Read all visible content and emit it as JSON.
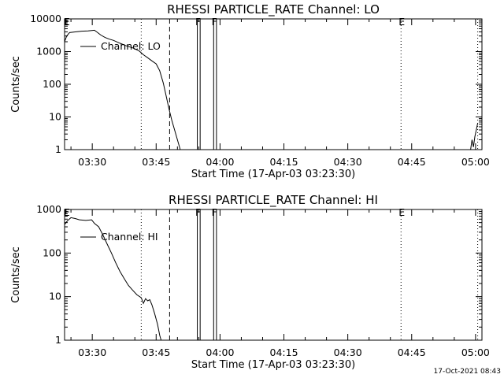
{
  "timestamp": "17-Oct-2021 08:43",
  "chart_data": [
    {
      "type": "line",
      "title": "RHESSI PARTICLE_RATE Channel: LO",
      "xlabel": "Start Time (17-Apr-03 03:23:30)",
      "ylabel": "Counts/sec",
      "yscale": "log",
      "ylim": [
        1,
        10000
      ],
      "xlim": [
        "03:23:30",
        "05:01:30"
      ],
      "x_ticks": [
        "03:30",
        "03:45",
        "04:00",
        "04:15",
        "04:30",
        "04:45",
        "05:00"
      ],
      "y_ticks": [
        "1",
        "10",
        "100",
        "1000",
        "10000"
      ],
      "legend": {
        "label": "Channel: LO",
        "position": "top-left"
      },
      "markers": [
        {
          "time": "03:23:50",
          "label": "E",
          "style": "tick"
        },
        {
          "time": "03:41:30",
          "label": "",
          "style": "dotted"
        },
        {
          "time": "03:48:10",
          "label": "",
          "style": "dashed"
        },
        {
          "time": "03:54:40",
          "label": "F",
          "style": "solid"
        },
        {
          "time": "03:55:20",
          "label": "",
          "style": "solid"
        },
        {
          "time": "03:58:30",
          "label": "F",
          "style": "solid"
        },
        {
          "time": "03:59:10",
          "label": "",
          "style": "solid"
        },
        {
          "time": "04:42:30",
          "label": "E",
          "style": "dotted"
        },
        {
          "time": "05:00:30",
          "label": "",
          "style": "dotted"
        }
      ],
      "series": [
        {
          "segments": [
            [
              [
                "03:23:30",
                2000
              ],
              [
                "03:24:00",
                3000
              ],
              [
                "03:24:40",
                3800
              ],
              [
                "03:26:00",
                4000
              ],
              [
                "03:27:30",
                4200
              ],
              [
                "03:29:00",
                4300
              ],
              [
                "03:30:30",
                4500
              ],
              [
                "03:31:10",
                3900
              ],
              [
                "03:32:00",
                3200
              ],
              [
                "03:33:00",
                2700
              ],
              [
                "03:34:00",
                2400
              ],
              [
                "03:35:00",
                2200
              ],
              [
                "03:36:30",
                1800
              ],
              [
                "03:38:00",
                1500
              ],
              [
                "03:39:30",
                1300
              ],
              [
                "03:41:00",
                1050
              ],
              [
                "03:42:00",
                800
              ],
              [
                "03:43:00",
                650
              ],
              [
                "03:44:00",
                520
              ],
              [
                "03:45:00",
                420
              ],
              [
                "03:45:50",
                260
              ],
              [
                "03:46:40",
                110
              ],
              [
                "03:47:20",
                45
              ],
              [
                "03:48:00",
                18
              ],
              [
                "03:48:40",
                8
              ],
              [
                "03:49:20",
                4
              ],
              [
                "03:50:00",
                2
              ],
              [
                "03:50:40",
                1
              ]
            ],
            [
              [
                "04:58:50",
                1
              ],
              [
                "04:59:10",
                2
              ],
              [
                "04:59:30",
                1.2
              ],
              [
                "04:59:50",
                2.5
              ],
              [
                "05:00:10",
                4
              ],
              [
                "05:00:30",
                6.5
              ]
            ]
          ]
        }
      ]
    },
    {
      "type": "line",
      "title": "RHESSI PARTICLE_RATE Channel: HI",
      "xlabel": "Start Time (17-Apr-03 03:23:30)",
      "ylabel": "Counts/sec",
      "yscale": "log",
      "ylim": [
        1,
        1000
      ],
      "xlim": [
        "03:23:30",
        "05:01:30"
      ],
      "x_ticks": [
        "03:30",
        "03:45",
        "04:00",
        "04:15",
        "04:30",
        "04:45",
        "05:00"
      ],
      "y_ticks": [
        "1",
        "10",
        "100",
        "1000"
      ],
      "legend": {
        "label": "Channel: HI",
        "position": "top-left"
      },
      "markers": [
        {
          "time": "03:23:50",
          "label": "E",
          "style": "tick"
        },
        {
          "time": "03:41:30",
          "label": "",
          "style": "dotted"
        },
        {
          "time": "03:48:10",
          "label": "",
          "style": "dashed"
        },
        {
          "time": "03:54:40",
          "label": "F",
          "style": "solid"
        },
        {
          "time": "03:55:20",
          "label": "",
          "style": "solid"
        },
        {
          "time": "03:58:30",
          "label": "F",
          "style": "solid"
        },
        {
          "time": "03:59:10",
          "label": "",
          "style": "solid"
        },
        {
          "time": "04:42:30",
          "label": "E",
          "style": "dotted"
        },
        {
          "time": "05:00:30",
          "label": "",
          "style": "dotted"
        }
      ],
      "series": [
        {
          "segments": [
            [
              [
                "03:23:30",
                450
              ],
              [
                "03:24:10",
                550
              ],
              [
                "03:25:00",
                650
              ],
              [
                "03:26:00",
                620
              ],
              [
                "03:27:00",
                580
              ],
              [
                "03:28:30",
                560
              ],
              [
                "03:29:50",
                580
              ],
              [
                "03:30:30",
                480
              ],
              [
                "03:31:30",
                400
              ],
              [
                "03:32:30",
                260
              ],
              [
                "03:33:30",
                160
              ],
              [
                "03:34:30",
                100
              ],
              [
                "03:35:30",
                60
              ],
              [
                "03:36:30",
                38
              ],
              [
                "03:37:30",
                26
              ],
              [
                "03:38:30",
                18
              ],
              [
                "03:39:30",
                14
              ],
              [
                "03:40:30",
                11
              ],
              [
                "03:41:30",
                9.5
              ],
              [
                "03:42:00",
                7
              ],
              [
                "03:42:30",
                9
              ],
              [
                "03:43:00",
                8
              ],
              [
                "03:43:30",
                8.5
              ],
              [
                "03:44:00",
                6.5
              ],
              [
                "03:44:40",
                4
              ],
              [
                "03:45:20",
                2.3
              ],
              [
                "03:45:50",
                1.3
              ],
              [
                "03:46:10",
                1
              ]
            ]
          ]
        }
      ]
    }
  ]
}
